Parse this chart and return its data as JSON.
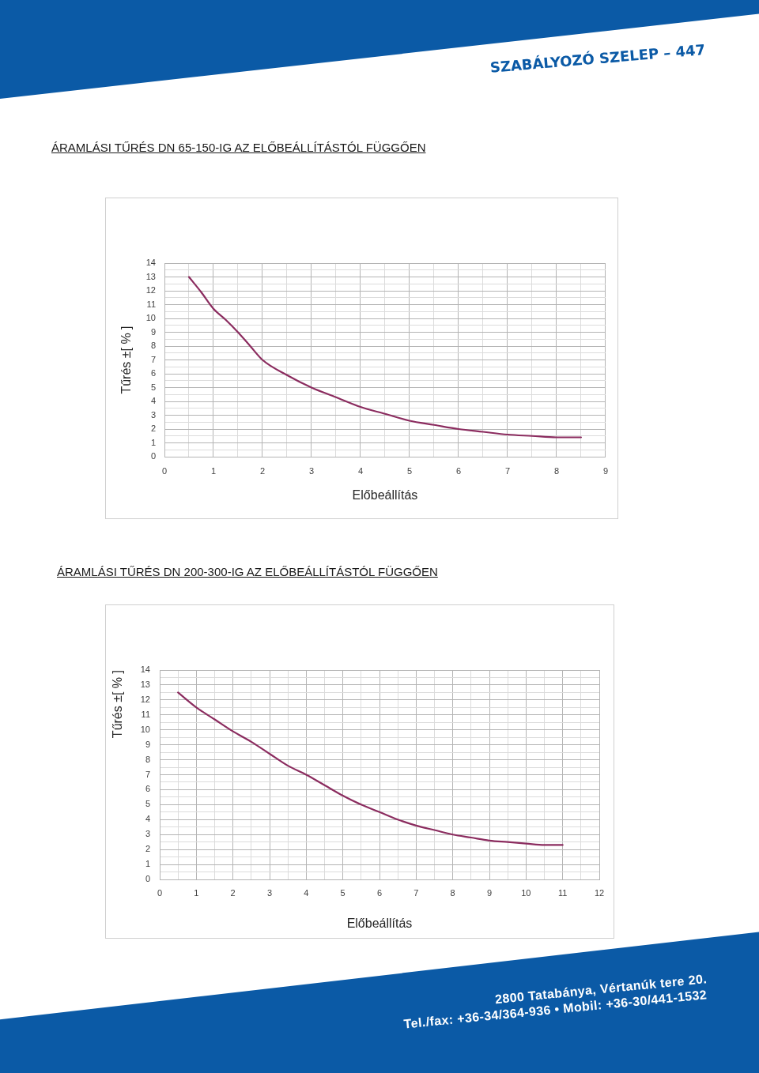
{
  "chart_data": [
    {
      "type": "other",
      "title": "SZABÁLYOZÓ SZELEP – 447"
    },
    {
      "type": "line",
      "title": "ÁRAMLÁSI TŰRÉS DN 65-150-IG AZ ELŐBEÁLLÍTÁSTÓL FÜGGŐEN",
      "xlabel": "Előbeállítás",
      "ylabel": "Tűrés ±[ % ]",
      "x": [
        0.5,
        0.75,
        1,
        1.25,
        1.5,
        1.75,
        2,
        2.5,
        3,
        3.5,
        4,
        4.5,
        5,
        5.5,
        6,
        6.5,
        7,
        7.5,
        8,
        8.5
      ],
      "series": [
        {
          "color": "#8b2c5f",
          "values": [
            13,
            11.9,
            10.7,
            9.9,
            9,
            8,
            7,
            5.9,
            5,
            4.3,
            3.6,
            3.1,
            2.6,
            2.3,
            2,
            1.8,
            1.6,
            1.5,
            1.4,
            1.4
          ]
        }
      ],
      "xlim": [
        0,
        9
      ],
      "xticks": [
        0,
        {
          "value": 0.5,
          "label": null
        },
        1,
        {
          "value": 1.5,
          "label": null
        },
        2,
        {
          "value": 2.5,
          "label": null
        },
        3,
        {
          "value": 3.5,
          "label": null
        },
        4,
        {
          "value": 4.5,
          "label": null
        },
        5,
        {
          "value": 5.5,
          "label": null
        },
        6,
        {
          "value": 6.5,
          "label": null
        },
        7,
        {
          "value": 7.5,
          "label": null
        },
        8,
        {
          "value": 8.5,
          "label": null
        },
        9
      ],
      "ylim": [
        0,
        14
      ],
      "yticks": [
        0,
        {
          "value": 0.5,
          "label": null
        },
        1,
        {
          "value": 1.5,
          "label": null
        },
        2,
        {
          "value": 2.5,
          "label": null
        },
        3,
        {
          "value": 3.5,
          "label": null
        },
        4,
        {
          "value": 4.5,
          "label": null
        },
        5,
        {
          "value": 5.5,
          "label": null
        },
        6,
        {
          "value": 6.5,
          "label": null
        },
        7,
        {
          "value": 7.5,
          "label": null
        },
        8,
        {
          "value": 8.5,
          "label": null
        },
        9,
        {
          "value": 9.5,
          "label": null
        },
        10,
        {
          "value": 10.5,
          "label": null
        },
        11,
        {
          "value": 11.5,
          "label": null
        },
        12,
        {
          "value": 12.5,
          "label": null
        },
        13,
        {
          "value": 13.5,
          "label": null
        },
        14
      ],
      "grid": true,
      "marker": "none"
    },
    {
      "type": "line",
      "title": "ÁRAMLÁSI TŰRÉS DN 200-300-IG AZ ELŐBEÁLLÍTÁSTÓL FÜGGŐEN",
      "xlabel": "Előbeállítás",
      "ylabel": "Tűrés ±[ % ]",
      "x": [
        0.5,
        1,
        1.5,
        2,
        2.5,
        3,
        3.5,
        4,
        4.5,
        5,
        5.5,
        6,
        6.5,
        7,
        7.5,
        8,
        8.5,
        9,
        9.5,
        10,
        10.5,
        11
      ],
      "series": [
        {
          "color": "#8b2c5f",
          "values": [
            12.5,
            11.5,
            10.7,
            9.9,
            9.2,
            8.4,
            7.6,
            7,
            6.3,
            5.6,
            5,
            4.5,
            4,
            3.6,
            3.3,
            3,
            2.8,
            2.6,
            2.5,
            2.4,
            2.3,
            2.3
          ]
        }
      ],
      "xlim": [
        0,
        12
      ],
      "xticks": [
        0,
        {
          "value": 0.5,
          "label": null
        },
        1,
        {
          "value": 1.5,
          "label": null
        },
        2,
        {
          "value": 2.5,
          "label": null
        },
        3,
        {
          "value": 3.5,
          "label": null
        },
        4,
        {
          "value": 4.5,
          "label": null
        },
        5,
        {
          "value": 5.5,
          "label": null
        },
        6,
        {
          "value": 6.5,
          "label": null
        },
        7,
        {
          "value": 7.5,
          "label": null
        },
        8,
        {
          "value": 8.5,
          "label": null
        },
        9,
        {
          "value": 9.5,
          "label": null
        },
        10,
        {
          "value": 10.5,
          "label": null
        },
        11,
        {
          "value": 11.5,
          "label": null
        },
        12
      ],
      "ylim": [
        0,
        14
      ],
      "yticks": [
        0,
        {
          "value": 0.5,
          "label": null
        },
        1,
        {
          "value": 1.5,
          "label": null
        },
        2,
        {
          "value": 2.5,
          "label": null
        },
        3,
        {
          "value": 3.5,
          "label": null
        },
        4,
        {
          "value": 4.5,
          "label": null
        },
        5,
        {
          "value": 5.5,
          "label": null
        },
        6,
        {
          "value": 6.5,
          "label": null
        },
        7,
        {
          "value": 7.5,
          "label": null
        },
        8,
        {
          "value": 8.5,
          "label": null
        },
        9,
        {
          "value": 9.5,
          "label": null
        },
        10,
        {
          "value": 10.5,
          "label": null
        },
        11,
        {
          "value": 11.5,
          "label": null
        },
        12,
        {
          "value": 12.5,
          "label": null
        },
        13,
        {
          "value": 13.5,
          "label": null
        },
        14
      ],
      "grid": true,
      "marker": "none"
    },
    {
      "type": "other",
      "annotations": [
        "2800 Tatabánya, Vértanúk tere 20.",
        "Tel./fax: +36-34/364-936 • Mobil: +36-30/441-1532"
      ]
    }
  ]
}
